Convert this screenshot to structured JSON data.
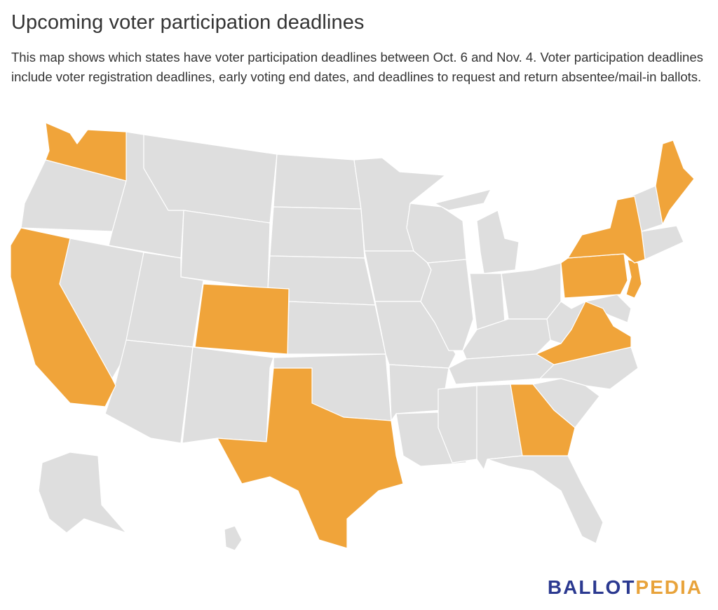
{
  "header": {
    "title": "Upcoming voter participation deadlines",
    "description": "This map shows which states have voter participation deadlines between Oct. 6 and Nov. 4. Voter participation deadlines include voter registration deadlines, early voting end dates, and deadlines to request and return absentee/mail-in ballots."
  },
  "map": {
    "highlight_color": "#f0a43a",
    "base_color": "#dedede",
    "highlighted_states": [
      "Washington",
      "California",
      "Colorado",
      "Texas",
      "Georgia",
      "Virginia",
      "Pennsylvania",
      "New Jersey",
      "New York",
      "Maine"
    ]
  },
  "logo": {
    "part1": "BALLOT",
    "part2": "PEDIA"
  }
}
